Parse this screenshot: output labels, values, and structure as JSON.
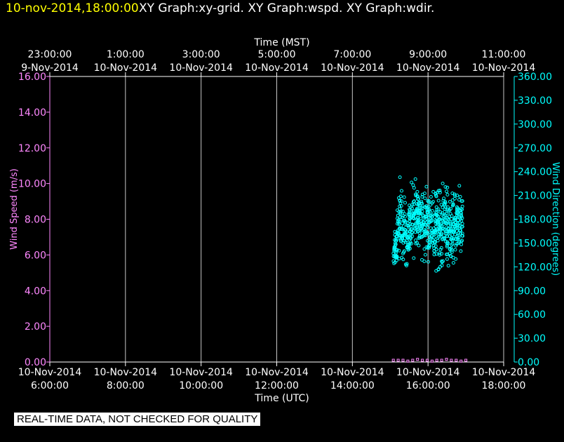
{
  "header": {
    "timestamp": "10-nov-2014,18:00:00",
    "graphs": "XY Graph:xy-grid.  XY Graph:wspd.  XY Graph:wdir."
  },
  "footer": {
    "banner": "REAL-TIME DATA, NOT CHECKED FOR QUALITY"
  },
  "colors": {
    "background": "#000000",
    "timestamp": "#ffff00",
    "title": "#ffffff",
    "grid": "#c8c8c8",
    "wind_speed": "#ff88ff",
    "wind_direction": "#00ffff"
  },
  "chart_data": {
    "type": "scatter",
    "top_axis": {
      "label": "Time (MST)",
      "ticks": [
        [
          "23:00:00",
          "9-Nov-2014"
        ],
        [
          "1:00:00",
          "10-Nov-2014"
        ],
        [
          "3:00:00",
          "10-Nov-2014"
        ],
        [
          "5:00:00",
          "10-Nov-2014"
        ],
        [
          "7:00:00",
          "10-Nov-2014"
        ],
        [
          "9:00:00",
          "10-Nov-2014"
        ],
        [
          "11:00:00",
          "10-Nov-2014"
        ]
      ]
    },
    "bottom_axis": {
      "label": "Time (UTC)",
      "ticks": [
        [
          "10-Nov-2014",
          "6:00:00"
        ],
        [
          "10-Nov-2014",
          "8:00:00"
        ],
        [
          "10-Nov-2014",
          "10:00:00"
        ],
        [
          "10-Nov-2014",
          "12:00:00"
        ],
        [
          "10-Nov-2014",
          "14:00:00"
        ],
        [
          "10-Nov-2014",
          "16:00:00"
        ],
        [
          "10-Nov-2014",
          "18:00:00"
        ]
      ],
      "xlim": [
        "2014-11-10 06:00",
        "2014-11-10 18:00"
      ]
    },
    "left_axis": {
      "label": "Wind Speed (m/s)",
      "ylim": [
        0,
        16
      ],
      "ticks": [
        "0.00",
        "2.00",
        "4.00",
        "6.00",
        "8.00",
        "10.00",
        "12.00",
        "14.00",
        "16.00"
      ]
    },
    "right_axis": {
      "label": "Wind Direction (degrees)",
      "ylim": [
        0,
        360
      ],
      "ticks": [
        "0.00",
        "30.00",
        "60.00",
        "90.00",
        "120.00",
        "150.00",
        "180.00",
        "210.00",
        "240.00",
        "270.00",
        "300.00",
        "330.00",
        "360.00"
      ]
    },
    "grid": "vertical lines at each time tick",
    "series": [
      {
        "name": "Wind Speed (m/s)",
        "axis": "left",
        "time_range": [
          "2014-11-10 15:05",
          "2014-11-10 17:00"
        ],
        "values": [
          0.1,
          0.1,
          0.1,
          0.05,
          0.1,
          0.15,
          0.1,
          0.1,
          0.05,
          0.1,
          0.1,
          0.15,
          0.1,
          0.1,
          0.05,
          0.1
        ]
      },
      {
        "name": "Wind Direction (degrees)",
        "axis": "right",
        "time_range": [
          "2014-11-10 15:05",
          "2014-11-10 16:55"
        ],
        "envelope": [
          {
            "x": "2014-11-10 15:05",
            "low": 115,
            "high": 155
          },
          {
            "x": "2014-11-10 15:15",
            "low": 105,
            "high": 250
          },
          {
            "x": "2014-11-10 15:25",
            "low": 100,
            "high": 215
          },
          {
            "x": "2014-11-10 15:35",
            "low": 115,
            "high": 245
          },
          {
            "x": "2014-11-10 15:45",
            "low": 130,
            "high": 240
          },
          {
            "x": "2014-11-10 15:55",
            "low": 110,
            "high": 235
          },
          {
            "x": "2014-11-10 16:05",
            "low": 125,
            "high": 235
          },
          {
            "x": "2014-11-10 16:15",
            "low": 95,
            "high": 240
          },
          {
            "x": "2014-11-10 16:25",
            "low": 110,
            "high": 240
          },
          {
            "x": "2014-11-10 16:35",
            "low": 100,
            "high": 230
          },
          {
            "x": "2014-11-10 16:45",
            "low": 115,
            "high": 230
          },
          {
            "x": "2014-11-10 16:55",
            "low": 120,
            "high": 230
          }
        ]
      }
    ]
  }
}
